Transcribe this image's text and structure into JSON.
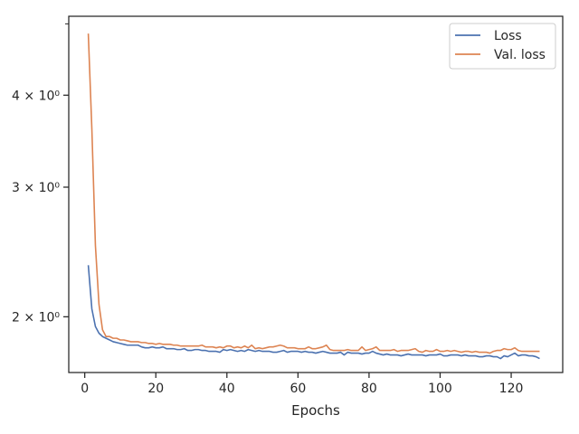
{
  "chart_data": {
    "type": "line",
    "title": "",
    "xlabel": "Epochs",
    "ylabel": "",
    "yscale": "log",
    "xlim": [
      -4.5,
      134.5
    ],
    "ylim": [
      1.68,
      5.12
    ],
    "grid": false,
    "legend": {
      "placement": "top-right"
    },
    "x_ticks": [
      0,
      20,
      40,
      60,
      80,
      100,
      120
    ],
    "x_tick_labels": [
      "0",
      "20",
      "40",
      "60",
      "80",
      "100",
      "120"
    ],
    "y_ticks": [
      2,
      3,
      4
    ],
    "y_tick_labels": [
      "2 × 10⁰",
      "3 × 10⁰",
      "4 × 10⁰"
    ],
    "x": [
      1,
      2,
      3,
      4,
      5,
      6,
      7,
      8,
      9,
      10,
      11,
      12,
      13,
      14,
      15,
      16,
      17,
      18,
      19,
      20,
      21,
      22,
      23,
      24,
      25,
      26,
      27,
      28,
      29,
      30,
      31,
      32,
      33,
      34,
      35,
      36,
      37,
      38,
      39,
      40,
      41,
      42,
      43,
      44,
      45,
      46,
      47,
      48,
      49,
      50,
      51,
      52,
      53,
      54,
      55,
      56,
      57,
      58,
      59,
      60,
      61,
      62,
      63,
      64,
      65,
      66,
      67,
      68,
      69,
      70,
      71,
      72,
      73,
      74,
      75,
      76,
      77,
      78,
      79,
      80,
      81,
      82,
      83,
      84,
      85,
      86,
      87,
      88,
      89,
      90,
      91,
      92,
      93,
      94,
      95,
      96,
      97,
      98,
      99,
      100,
      101,
      102,
      103,
      104,
      105,
      106,
      107,
      108,
      109,
      110,
      111,
      112,
      113,
      114,
      115,
      116,
      117,
      118,
      119,
      120,
      121,
      122,
      123,
      124,
      125,
      126,
      127,
      128
    ],
    "series": [
      {
        "name": "Loss",
        "color": "#4c72b0",
        "values": [
          2.35,
          2.05,
          1.94,
          1.9,
          1.88,
          1.87,
          1.86,
          1.85,
          1.845,
          1.84,
          1.835,
          1.83,
          1.83,
          1.83,
          1.83,
          1.82,
          1.815,
          1.815,
          1.82,
          1.815,
          1.815,
          1.82,
          1.81,
          1.81,
          1.81,
          1.805,
          1.805,
          1.81,
          1.8,
          1.8,
          1.805,
          1.805,
          1.8,
          1.8,
          1.795,
          1.795,
          1.795,
          1.79,
          1.805,
          1.8,
          1.805,
          1.8,
          1.795,
          1.8,
          1.795,
          1.805,
          1.8,
          1.795,
          1.8,
          1.795,
          1.795,
          1.795,
          1.79,
          1.79,
          1.795,
          1.8,
          1.79,
          1.795,
          1.795,
          1.795,
          1.79,
          1.795,
          1.79,
          1.79,
          1.785,
          1.79,
          1.795,
          1.79,
          1.785,
          1.785,
          1.785,
          1.79,
          1.775,
          1.79,
          1.785,
          1.785,
          1.785,
          1.78,
          1.785,
          1.785,
          1.795,
          1.785,
          1.78,
          1.775,
          1.78,
          1.775,
          1.775,
          1.775,
          1.77,
          1.775,
          1.78,
          1.775,
          1.775,
          1.775,
          1.775,
          1.77,
          1.775,
          1.775,
          1.775,
          1.78,
          1.77,
          1.77,
          1.775,
          1.775,
          1.775,
          1.77,
          1.775,
          1.77,
          1.77,
          1.77,
          1.765,
          1.765,
          1.77,
          1.77,
          1.765,
          1.765,
          1.755,
          1.77,
          1.765,
          1.775,
          1.785,
          1.77,
          1.775,
          1.775,
          1.77,
          1.77,
          1.765,
          1.755
        ]
      },
      {
        "name": "Val. loss",
        "color": "#dd8452",
        "values": [
          4.85,
          3.6,
          2.5,
          2.08,
          1.92,
          1.88,
          1.88,
          1.87,
          1.87,
          1.86,
          1.86,
          1.855,
          1.85,
          1.85,
          1.85,
          1.845,
          1.845,
          1.84,
          1.84,
          1.835,
          1.84,
          1.835,
          1.835,
          1.835,
          1.83,
          1.83,
          1.825,
          1.825,
          1.825,
          1.825,
          1.825,
          1.825,
          1.83,
          1.82,
          1.82,
          1.82,
          1.815,
          1.82,
          1.815,
          1.825,
          1.825,
          1.815,
          1.82,
          1.815,
          1.825,
          1.815,
          1.83,
          1.81,
          1.815,
          1.81,
          1.815,
          1.82,
          1.82,
          1.825,
          1.83,
          1.825,
          1.815,
          1.815,
          1.815,
          1.81,
          1.81,
          1.81,
          1.82,
          1.81,
          1.81,
          1.815,
          1.82,
          1.83,
          1.805,
          1.8,
          1.8,
          1.8,
          1.8,
          1.805,
          1.8,
          1.8,
          1.8,
          1.82,
          1.8,
          1.805,
          1.81,
          1.82,
          1.8,
          1.8,
          1.8,
          1.8,
          1.805,
          1.795,
          1.8,
          1.8,
          1.8,
          1.805,
          1.81,
          1.795,
          1.79,
          1.8,
          1.795,
          1.795,
          1.805,
          1.795,
          1.795,
          1.8,
          1.795,
          1.8,
          1.795,
          1.79,
          1.795,
          1.795,
          1.79,
          1.795,
          1.79,
          1.79,
          1.79,
          1.785,
          1.795,
          1.8,
          1.8,
          1.81,
          1.805,
          1.805,
          1.815,
          1.8,
          1.795,
          1.795,
          1.795,
          1.795,
          1.795,
          1.795
        ]
      }
    ]
  }
}
